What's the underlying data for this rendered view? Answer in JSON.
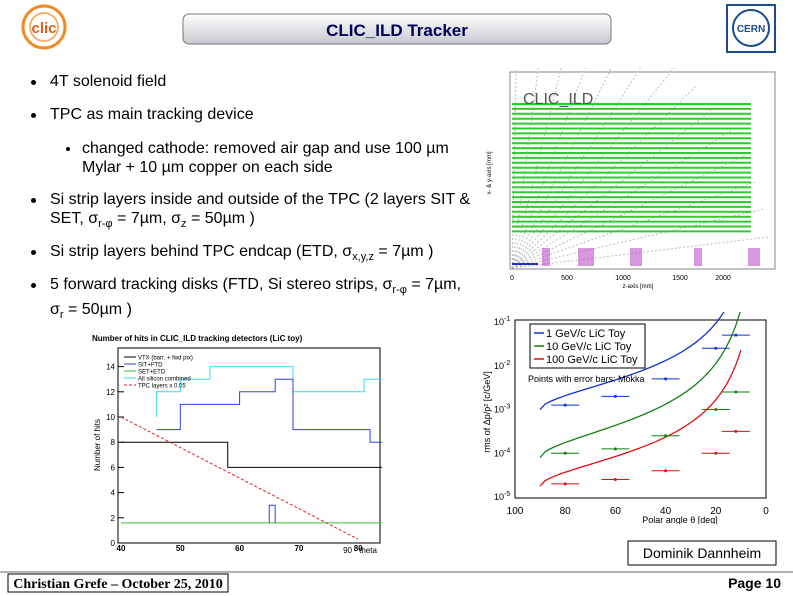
{
  "header": {
    "logo_text": "clic",
    "title": "CLIC_ILD Tracker",
    "cern_logo": "CERN"
  },
  "bullets": [
    {
      "level": 1,
      "runs": [
        {
          "text": "4T solenoid field"
        }
      ]
    },
    {
      "level": 1,
      "runs": [
        {
          "text": "TPC as main tracking device"
        }
      ]
    },
    {
      "level": 2,
      "runs": [
        {
          "text": "changed cathode: removed air gap and use 100 µm Mylar + 10 µm copper on each side"
        }
      ]
    },
    {
      "level": 1,
      "runs": [
        {
          "text": "Si strip layers inside and outside of the TPC (2 layers SIT & SET, σ"
        },
        {
          "sub": "r-φ"
        },
        {
          "text": " = 7µm, σ"
        },
        {
          "sub": "z"
        },
        {
          "text": " = 50µm )"
        }
      ]
    },
    {
      "level": 1,
      "runs": [
        {
          "text": "Si strip layers behind TPC endcap (ETD, σ"
        },
        {
          "sub": "x,y,z"
        },
        {
          "text": " = 7µm )"
        }
      ]
    },
    {
      "level": 1,
      "runs": [
        {
          "text": "5 forward tracking disks (FTD, Si stereo strips, σ"
        },
        {
          "sub": "r-φ"
        },
        {
          "text": " = 7µm, σ"
        },
        {
          "sub": "r"
        },
        {
          "text": " = 50µm )"
        }
      ]
    }
  ],
  "figures": {
    "layout": {
      "label": "CLIC_ILD",
      "ylabel": "x- & y-axis [mm]",
      "xlabel": "z-axis [mm]",
      "xticks": [
        "0",
        "500",
        "1000",
        "1500",
        "2000"
      ]
    },
    "hits": {
      "title": "Number of hits in CLIC_ILD tracking detectors (LiC toy)",
      "ylabel": "Number of hits",
      "xlabel": "90 - theta",
      "yticks": [
        "0",
        "2",
        "4",
        "6",
        "8",
        "10",
        "12",
        "14"
      ],
      "xticks": [
        "40",
        "50",
        "60",
        "70",
        "80"
      ],
      "legend": [
        "VTX (barr. + fwd pix)",
        "SIT+FTD",
        "SET+ETD",
        "All silicon combined",
        "TPC layers x 0.05"
      ]
    },
    "resolution": {
      "ylabel": "rms of Δp/p² [c/GeV]",
      "xlabel": "Polar angle θ [deg]",
      "yticks": [
        {
          "base": "10",
          "exp": "-1"
        },
        {
          "base": "10",
          "exp": "-2"
        },
        {
          "base": "10",
          "exp": "-3"
        },
        {
          "base": "10",
          "exp": "-4"
        },
        {
          "base": "10",
          "exp": "-5"
        }
      ],
      "xticks": [
        "100",
        "80",
        "60",
        "40",
        "20",
        "0"
      ],
      "legend": [
        "1 GeV/c LiC Toy",
        "10 GeV/c LiC Toy",
        "100 GeV/c LiC Toy"
      ],
      "note": "Points with error bars: Mokka"
    }
  },
  "footer": {
    "credit": "Dominik Dannheim",
    "author": "Christian Grefe – October 25, 2010",
    "page": "Page 10"
  }
}
